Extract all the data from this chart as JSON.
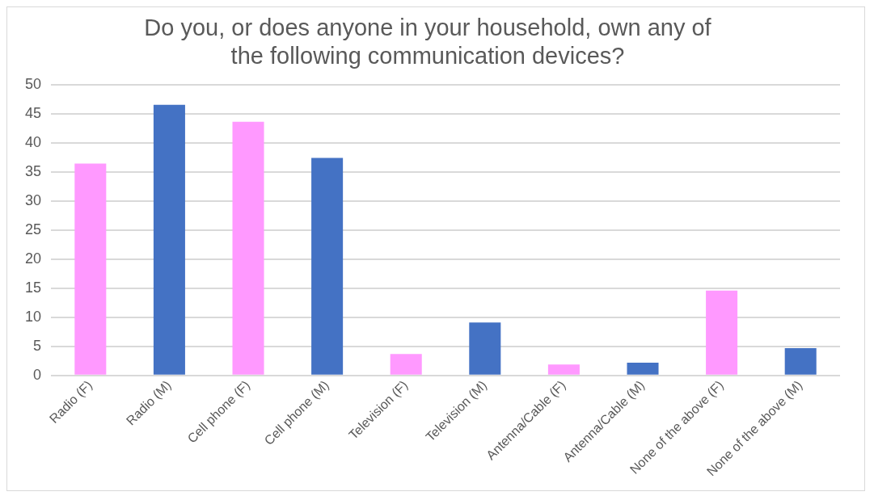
{
  "chart_data": {
    "type": "bar",
    "title": [
      "Do you, or does anyone in your household, own any of",
      "the following communication devices?"
    ],
    "categories": [
      "Radio (F)",
      "Radio (M)",
      "Cell phone (F)",
      "Cell phone (M)",
      "Television (F)",
      "Television (M)",
      "Antenna/Cable (F)",
      "Antenna/Cable (M)",
      "None of the above (F)",
      "None of the above (M)"
    ],
    "values": [
      36.4,
      46.5,
      43.6,
      37.4,
      3.7,
      9.1,
      1.9,
      2.2,
      14.6,
      4.7
    ],
    "colors": [
      "#ff99ff",
      "#4472c4",
      "#ff99ff",
      "#4472c4",
      "#ff99ff",
      "#4472c4",
      "#ff99ff",
      "#4472c4",
      "#ff99ff",
      "#4472c4"
    ],
    "ylim": [
      0,
      50
    ],
    "yticks": [
      0,
      5,
      10,
      15,
      20,
      25,
      30,
      35,
      40,
      45,
      50
    ],
    "grid": "y",
    "legend": false
  }
}
